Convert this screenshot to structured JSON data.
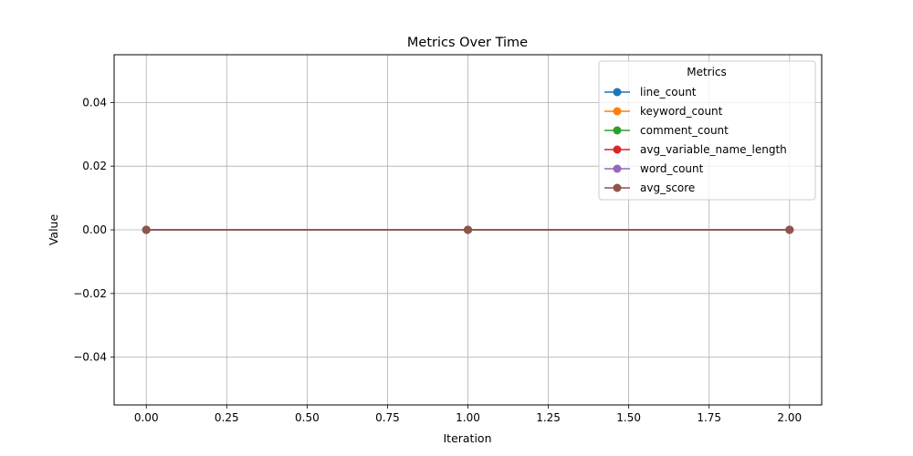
{
  "chart_data": {
    "type": "line",
    "title": "Metrics Over Time",
    "xlabel": "Iteration",
    "ylabel": "Value",
    "xlim": [
      -0.1,
      2.1
    ],
    "ylim": [
      -0.055,
      0.055
    ],
    "xticks": [
      0.0,
      0.25,
      0.5,
      0.75,
      1.0,
      1.25,
      1.5,
      1.75,
      2.0
    ],
    "xtick_labels": [
      "0.00",
      "0.25",
      "0.50",
      "0.75",
      "1.00",
      "1.25",
      "1.50",
      "1.75",
      "2.00"
    ],
    "yticks": [
      -0.04,
      -0.02,
      0.0,
      0.02,
      0.04
    ],
    "ytick_labels": [
      "−0.04",
      "−0.02",
      "0.00",
      "0.02",
      "0.04"
    ],
    "grid": true,
    "legend": {
      "title": "Metrics",
      "placement": "top-right"
    },
    "x": [
      0,
      1,
      2
    ],
    "series": [
      {
        "name": "line_count",
        "color": "#1f77b4",
        "values": [
          0,
          0,
          0
        ]
      },
      {
        "name": "keyword_count",
        "color": "#ff7f0e",
        "values": [
          0,
          0,
          0
        ]
      },
      {
        "name": "comment_count",
        "color": "#2ca02c",
        "values": [
          0,
          0,
          0
        ]
      },
      {
        "name": "avg_variable_name_length",
        "color": "#d62728",
        "values": [
          0,
          0,
          0
        ]
      },
      {
        "name": "word_count",
        "color": "#9467bd",
        "values": [
          0,
          0,
          0
        ]
      },
      {
        "name": "avg_score",
        "color": "#8c564b",
        "values": [
          0,
          0,
          0
        ]
      }
    ]
  }
}
